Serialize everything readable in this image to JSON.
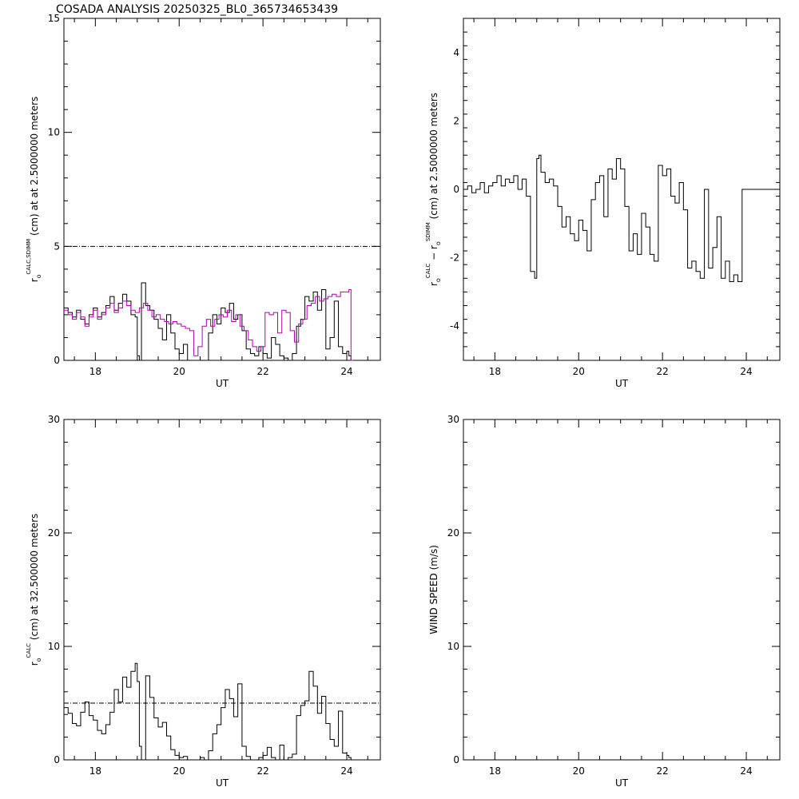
{
  "title": "COSADA ANALYSIS 20250325_BL0_365734653439",
  "chart_data": [
    {
      "type": "line",
      "id": "top-left",
      "xlabel": "UT",
      "ylabel": {
        "symbol": "r",
        "sub": "o",
        "sup": "CALC,SDIMM",
        "text": "(cm) at  at 2.5000000 meters"
      },
      "xlim": [
        17.25,
        24.8
      ],
      "ylim": [
        0,
        15
      ],
      "xticks": [
        18,
        20,
        22,
        24
      ],
      "yticks": [
        0,
        5,
        10,
        15
      ],
      "reference_line": 5,
      "series": [
        {
          "color": "#000000",
          "x": [
            17.25,
            17.35,
            17.45,
            17.55,
            17.65,
            17.75,
            17.85,
            17.95,
            18.05,
            18.15,
            18.25,
            18.35,
            18.45,
            18.55,
            18.65,
            18.75,
            18.85,
            18.95,
            19.0,
            19.05,
            19.1,
            19.2,
            19.3,
            19.4,
            19.5,
            19.6,
            19.7,
            19.8,
            19.9,
            20.0,
            20.1,
            20.2,
            20.3,
            20.4,
            20.5,
            20.6,
            20.7,
            20.8,
            20.9,
            21.0,
            21.1,
            21.2,
            21.3,
            21.4,
            21.5,
            21.6,
            21.7,
            21.8,
            21.9,
            22.0,
            22.1,
            22.2,
            22.3,
            22.4,
            22.5,
            22.6,
            22.7,
            22.8,
            22.9,
            23.0,
            23.1,
            23.2,
            23.3,
            23.4,
            23.5,
            23.6,
            23.7,
            23.8,
            23.9,
            24.0,
            24.05,
            24.1
          ],
          "y": [
            2.3,
            2.1,
            1.9,
            2.2,
            1.8,
            1.6,
            2.0,
            2.3,
            1.9,
            2.1,
            2.4,
            2.8,
            2.2,
            2.5,
            2.9,
            2.6,
            2.0,
            1.9,
            0.2,
            0.0,
            3.4,
            2.4,
            2.2,
            1.8,
            1.4,
            0.9,
            2.0,
            1.2,
            0.5,
            0.3,
            0.7,
            0.0,
            0.0,
            0.0,
            0.0,
            0.0,
            1.2,
            2.0,
            1.6,
            2.3,
            2.1,
            2.5,
            1.8,
            2.0,
            1.3,
            0.5,
            0.3,
            0.2,
            0.6,
            0.3,
            0.1,
            1.0,
            0.7,
            0.2,
            0.1,
            0.0,
            0.3,
            1.5,
            1.8,
            2.8,
            2.6,
            3.0,
            2.2,
            3.1,
            0.5,
            1.0,
            2.6,
            0.6,
            0.3,
            0.4,
            0.2,
            0.0
          ]
        },
        {
          "color": "#b000b0",
          "x": [
            17.25,
            17.35,
            17.45,
            17.55,
            17.65,
            17.75,
            17.85,
            17.95,
            18.05,
            18.15,
            18.25,
            18.35,
            18.45,
            18.55,
            18.65,
            18.75,
            18.85,
            18.95,
            19.05,
            19.15,
            19.25,
            19.35,
            19.45,
            19.55,
            19.65,
            19.75,
            19.85,
            19.95,
            20.05,
            20.15,
            20.25,
            20.35,
            20.45,
            20.55,
            20.65,
            20.75,
            20.85,
            20.95,
            21.05,
            21.15,
            21.25,
            21.35,
            21.45,
            21.55,
            21.65,
            21.75,
            21.85,
            21.95,
            22.05,
            22.15,
            22.25,
            22.35,
            22.45,
            22.55,
            22.65,
            22.75,
            22.85,
            22.95,
            23.05,
            23.15,
            23.25,
            23.35,
            23.45,
            23.55,
            23.65,
            23.75,
            23.85,
            23.95,
            24.05,
            24.1
          ],
          "y": [
            2.2,
            2.0,
            1.8,
            2.1,
            1.9,
            1.5,
            1.9,
            2.2,
            1.8,
            2.0,
            2.3,
            2.5,
            2.1,
            2.3,
            2.6,
            2.4,
            2.2,
            2.1,
            2.3,
            2.5,
            2.2,
            1.9,
            2.0,
            1.8,
            1.7,
            1.6,
            1.7,
            1.6,
            1.5,
            1.4,
            1.3,
            0.2,
            0.6,
            1.5,
            1.8,
            1.5,
            1.8,
            2.0,
            1.9,
            2.2,
            1.7,
            2.0,
            1.5,
            1.3,
            0.9,
            0.6,
            0.4,
            0.6,
            2.1,
            2.0,
            2.1,
            1.2,
            2.2,
            2.1,
            1.3,
            0.8,
            1.6,
            1.8,
            2.4,
            2.5,
            2.8,
            2.6,
            2.7,
            2.8,
            2.9,
            2.8,
            3.0,
            3.0,
            3.1,
            0.0
          ]
        }
      ]
    },
    {
      "type": "line",
      "id": "top-right",
      "xlabel": "UT",
      "ylabel": {
        "symbol": "r",
        "sub": "o",
        "sup": "CALC",
        "text": "− r",
        "sub2": "o",
        "sup2": "SDIMM",
        "text2": "(cm) at 2.5000000 meters"
      },
      "xlim": [
        17.25,
        24.8
      ],
      "ylim": [
        -5,
        5
      ],
      "xticks": [
        18,
        20,
        22,
        24
      ],
      "yticks": [
        -4,
        -2,
        0,
        2,
        4
      ],
      "series": [
        {
          "color": "#000000",
          "x": [
            17.25,
            17.35,
            17.45,
            17.55,
            17.65,
            17.75,
            17.85,
            17.95,
            18.05,
            18.15,
            18.25,
            18.35,
            18.45,
            18.55,
            18.65,
            18.75,
            18.85,
            18.95,
            19.0,
            19.05,
            19.1,
            19.2,
            19.3,
            19.4,
            19.5,
            19.6,
            19.7,
            19.8,
            19.9,
            20.0,
            20.1,
            20.2,
            20.3,
            20.4,
            20.5,
            20.6,
            20.7,
            20.8,
            20.9,
            21.0,
            21.1,
            21.2,
            21.3,
            21.4,
            21.5,
            21.6,
            21.7,
            21.8,
            21.9,
            22.0,
            22.1,
            22.2,
            22.3,
            22.4,
            22.5,
            22.6,
            22.7,
            22.8,
            22.9,
            23.0,
            23.1,
            23.2,
            23.3,
            23.4,
            23.5,
            23.6,
            23.7,
            23.8,
            23.9,
            24.0,
            24.05,
            24.1,
            24.5,
            24.8
          ],
          "y": [
            0.0,
            0.1,
            -0.1,
            0.0,
            0.2,
            -0.1,
            0.1,
            0.2,
            0.4,
            0.1,
            0.3,
            0.2,
            0.4,
            0.0,
            0.3,
            -0.2,
            -2.4,
            -2.6,
            0.9,
            1.0,
            0.5,
            0.2,
            0.3,
            0.1,
            -0.5,
            -1.1,
            -0.8,
            -1.3,
            -1.5,
            -0.9,
            -1.2,
            -1.8,
            -0.3,
            0.2,
            0.4,
            -0.8,
            0.6,
            0.3,
            0.9,
            0.6,
            -0.5,
            -1.8,
            -1.3,
            -1.9,
            -0.7,
            -1.1,
            -1.9,
            -2.1,
            0.7,
            0.4,
            0.6,
            -0.2,
            -0.4,
            0.2,
            -0.6,
            -2.3,
            -2.1,
            -2.4,
            -2.6,
            0.0,
            -2.3,
            -1.7,
            -0.8,
            -2.6,
            -2.1,
            -2.7,
            -2.5,
            -2.7,
            0.0,
            0.0,
            0.0,
            0.0,
            0.0,
            0.0
          ]
        }
      ]
    },
    {
      "type": "line",
      "id": "bottom-left",
      "xlabel": "UT",
      "ylabel": {
        "symbol": "r",
        "sub": "o",
        "sup": "CALC",
        "text": "(cm) at 32.500000 meters"
      },
      "xlim": [
        17.25,
        24.8
      ],
      "ylim": [
        0,
        30
      ],
      "xticks": [
        18,
        20,
        22,
        24
      ],
      "yticks": [
        0,
        10,
        20,
        30
      ],
      "reference_line": 5,
      "series": [
        {
          "color": "#000000",
          "x": [
            17.25,
            17.35,
            17.45,
            17.55,
            17.65,
            17.75,
            17.85,
            17.95,
            18.05,
            18.15,
            18.25,
            18.35,
            18.45,
            18.55,
            18.65,
            18.75,
            18.85,
            18.95,
            19.0,
            19.05,
            19.1,
            19.2,
            19.3,
            19.4,
            19.5,
            19.6,
            19.7,
            19.8,
            19.9,
            20.0,
            20.1,
            20.2,
            20.3,
            20.4,
            20.5,
            20.6,
            20.7,
            20.8,
            20.9,
            21.0,
            21.1,
            21.2,
            21.3,
            21.4,
            21.5,
            21.6,
            21.7,
            21.8,
            21.9,
            22.0,
            22.1,
            22.2,
            22.3,
            22.4,
            22.5,
            22.6,
            22.7,
            22.8,
            22.9,
            23.0,
            23.1,
            23.2,
            23.3,
            23.4,
            23.5,
            23.6,
            23.7,
            23.8,
            23.9,
            24.0,
            24.05,
            24.1
          ],
          "y": [
            4.6,
            4.1,
            3.2,
            3.0,
            4.2,
            5.1,
            3.9,
            3.5,
            2.6,
            2.3,
            3.1,
            4.2,
            6.2,
            5.1,
            7.3,
            6.4,
            7.8,
            8.5,
            6.9,
            1.2,
            0.0,
            7.4,
            5.5,
            3.7,
            2.9,
            3.3,
            2.1,
            0.9,
            0.4,
            0.2,
            0.3,
            0.0,
            0.0,
            0.0,
            0.2,
            0.0,
            0.8,
            2.3,
            3.1,
            4.6,
            6.2,
            5.4,
            3.8,
            6.7,
            1.2,
            0.3,
            0.0,
            0.0,
            0.2,
            0.4,
            1.1,
            0.2,
            0.0,
            1.3,
            0.0,
            0.2,
            0.5,
            3.9,
            4.8,
            5.2,
            7.8,
            6.5,
            4.1,
            5.6,
            3.2,
            1.8,
            1.2,
            4.3,
            0.6,
            0.4,
            0.2,
            0.0
          ]
        }
      ]
    },
    {
      "type": "line",
      "id": "bottom-right",
      "xlabel": "UT",
      "ylabel": {
        "text": "WIND SPEED (m/s)"
      },
      "xlim": [
        17.25,
        24.8
      ],
      "ylim": [
        0,
        30
      ],
      "xticks": [
        18,
        20,
        22,
        24
      ],
      "yticks": [
        0,
        10,
        20,
        30
      ],
      "series": []
    }
  ]
}
